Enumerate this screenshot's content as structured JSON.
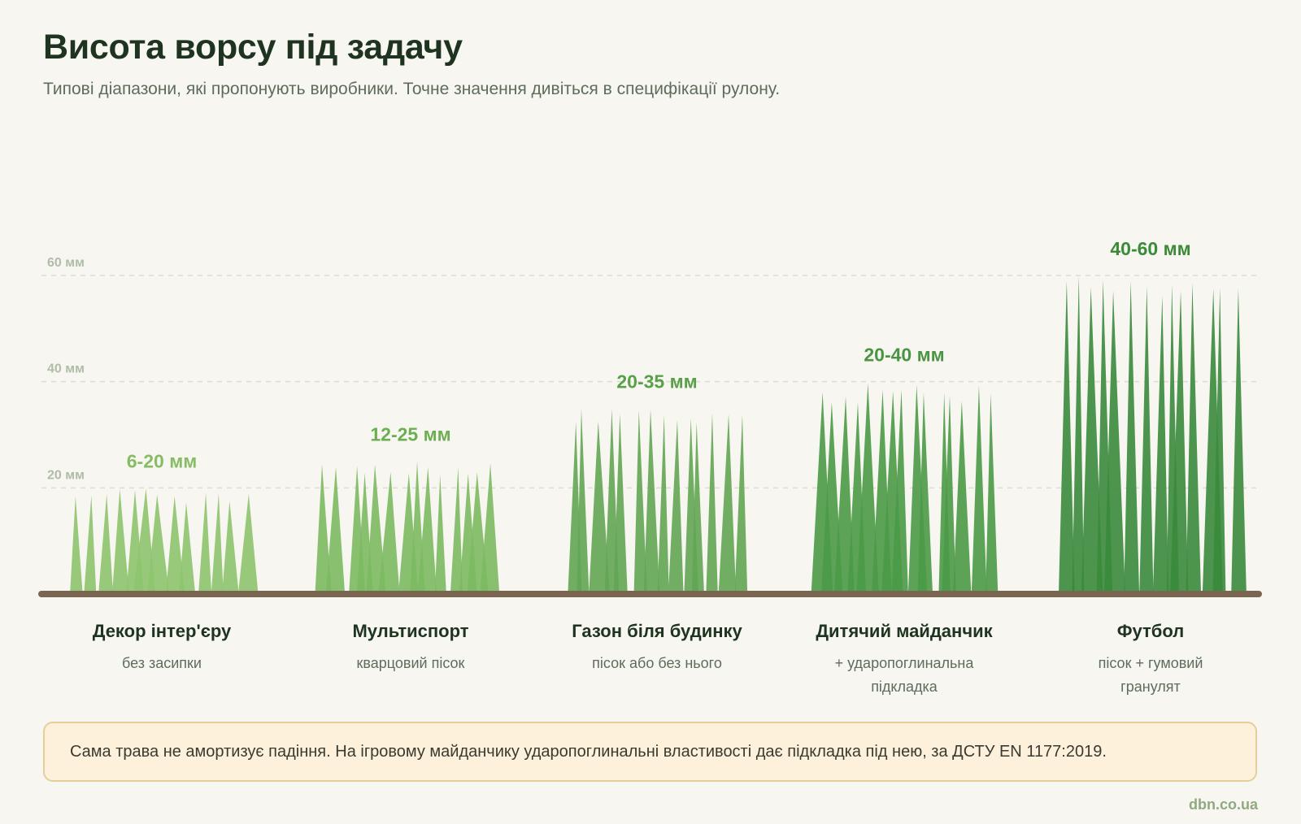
{
  "title": "Висота ворсу під задачу",
  "subtitle": "Типові діапазони, які пропонують виробники. Точне значення дивіться в специфікації рулону.",
  "chart_data": {
    "type": "range",
    "title": "Висота ворсу під задачу",
    "y_unit": "мм",
    "ylim": [
      0,
      60
    ],
    "yticks": [
      20,
      40,
      60
    ],
    "ytick_labels": [
      "20 мм",
      "40 мм",
      "60 мм"
    ],
    "grid": true,
    "series": [
      {
        "category": "Декор інтер'єру",
        "note": "без засипки",
        "min": 6,
        "max": 20,
        "range_label": "6-20 мм",
        "color": "#8dc46e",
        "label_color": "#86bc66"
      },
      {
        "category": "Мультиспорт",
        "note": "кварцовий пісок",
        "min": 12,
        "max": 25,
        "range_label": "12-25 мм",
        "color": "#7cba62",
        "label_color": "#6cae52"
      },
      {
        "category": "Газон біля будинку",
        "note": "пісок або без нього",
        "min": 20,
        "max": 35,
        "range_label": "20-35 мм",
        "color": "#62a654",
        "label_color": "#59a04a"
      },
      {
        "category": "Дитячий майданчик",
        "note": "+ ударопоглинальна підкладка",
        "min": 20,
        "max": 40,
        "range_label": "20-40 мм",
        "color": "#4a9a47",
        "label_color": "#4a9444"
      },
      {
        "category": "Футбол",
        "note": "пісок + гумовий гранулят",
        "min": 40,
        "max": 60,
        "range_label": "40-60 мм",
        "color": "#3a8a3c",
        "label_color": "#3a8a3a"
      }
    ]
  },
  "note": "Сама трава не амортизує падіння. На ігровому майданчику ударопоглинальні властивості дає підкладка під нею, за ДСТУ EN 1177:2019.",
  "source": "dbn.co.ua",
  "colors": {
    "ground": "#7a6650",
    "grid": "#dcdcd2",
    "background": "#f8f6f0",
    "note_bg": "#fdf1dc",
    "note_border": "#e4cf9a"
  }
}
